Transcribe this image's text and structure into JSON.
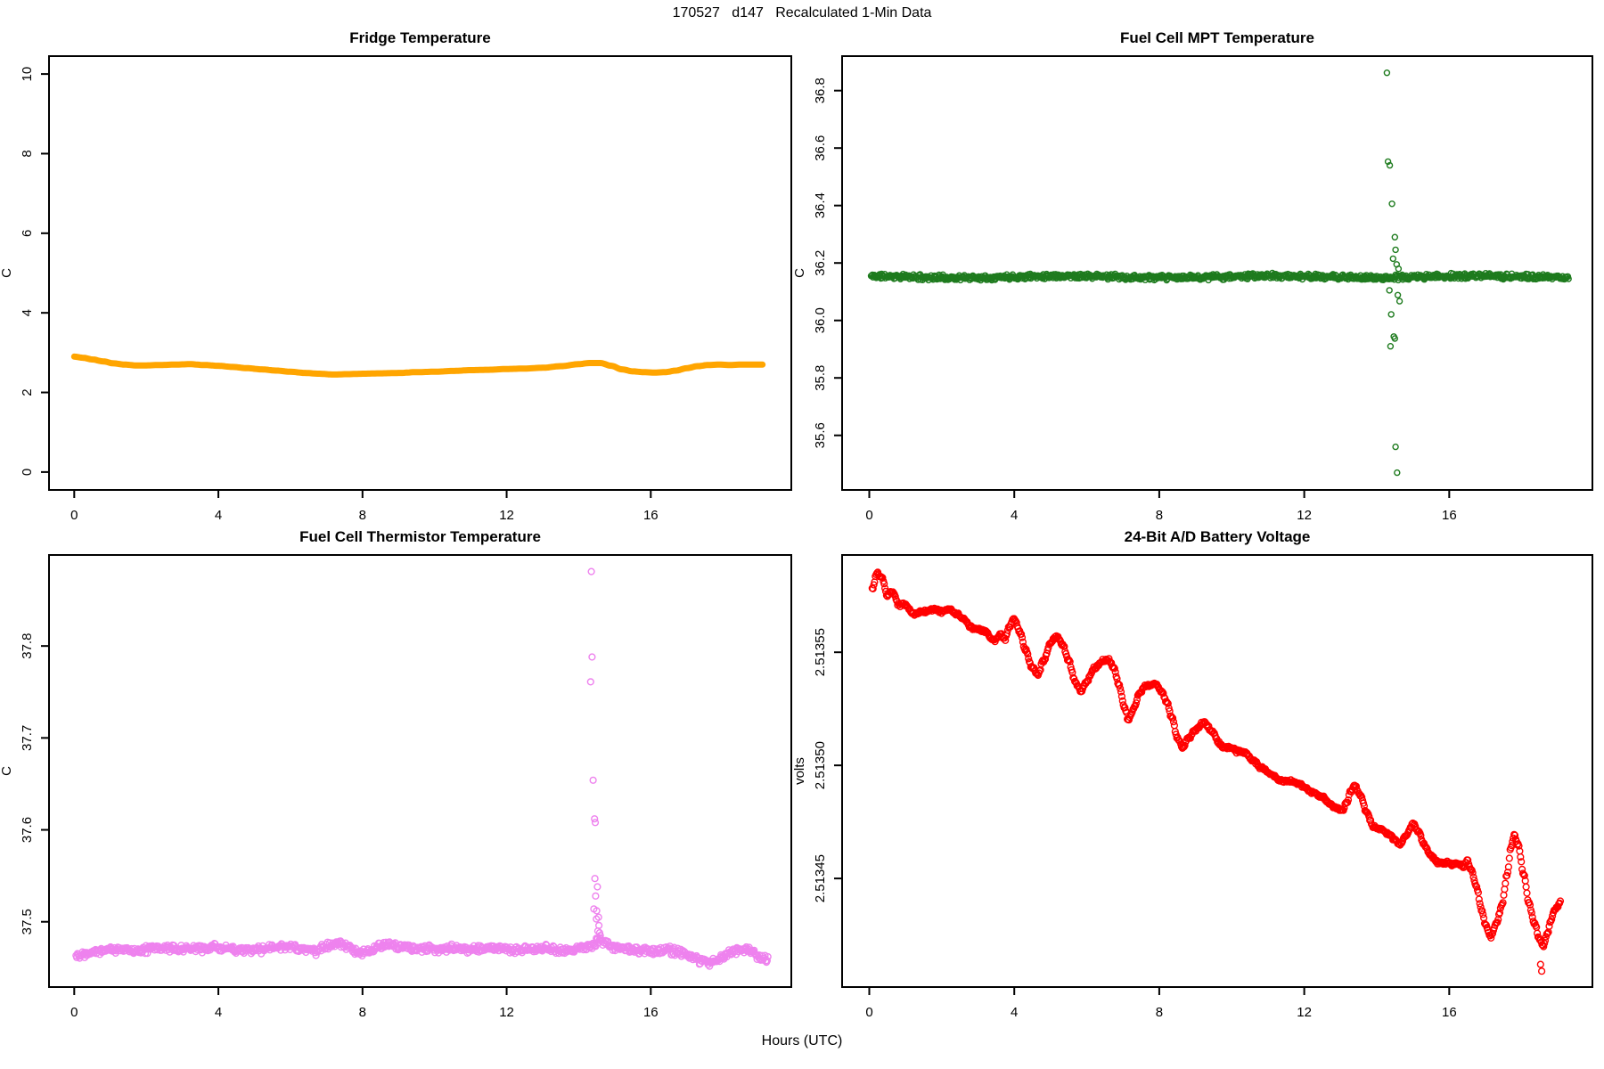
{
  "figure": {
    "main_title": "170527   d147   Recalculated 1-Min Data",
    "x_axis_label": "Hours (UTC)",
    "background_color": "#FFFFFF",
    "text_color": "#000000"
  },
  "chart_data": [
    {
      "id": "fridge-temperature",
      "type": "line",
      "title": "Fridge Temperature",
      "ylabel": "C",
      "color": "#FFA500",
      "x_ticks": [
        "0",
        "4",
        "8",
        "12",
        "16"
      ],
      "x_tick_values": [
        0,
        4,
        8,
        12,
        16
      ],
      "y_ticks": [
        "0",
        "2",
        "4",
        "6",
        "8",
        "10"
      ],
      "y_tick_values": [
        0,
        2,
        4,
        6,
        8,
        10
      ],
      "xlim": [
        -0.7,
        19.9
      ],
      "ylim": [
        -0.45,
        10.45
      ],
      "line_width": 7,
      "anchors": [
        [
          0.0,
          2.9
        ],
        [
          0.25,
          2.87
        ],
        [
          0.5,
          2.83
        ],
        [
          0.8,
          2.78
        ],
        [
          1.1,
          2.73
        ],
        [
          1.4,
          2.7
        ],
        [
          1.7,
          2.68
        ],
        [
          2.0,
          2.68
        ],
        [
          2.4,
          2.69
        ],
        [
          2.8,
          2.7
        ],
        [
          3.2,
          2.71
        ],
        [
          3.6,
          2.69
        ],
        [
          4.0,
          2.67
        ],
        [
          4.4,
          2.64
        ],
        [
          4.8,
          2.61
        ],
        [
          5.2,
          2.58
        ],
        [
          5.6,
          2.55
        ],
        [
          6.0,
          2.52
        ],
        [
          6.4,
          2.49
        ],
        [
          6.8,
          2.47
        ],
        [
          7.2,
          2.45
        ],
        [
          7.6,
          2.46
        ],
        [
          8.0,
          2.47
        ],
        [
          8.5,
          2.48
        ],
        [
          9.0,
          2.49
        ],
        [
          9.5,
          2.51
        ],
        [
          10.0,
          2.52
        ],
        [
          10.5,
          2.54
        ],
        [
          11.0,
          2.56
        ],
        [
          11.5,
          2.57
        ],
        [
          12.0,
          2.59
        ],
        [
          12.5,
          2.6
        ],
        [
          13.0,
          2.62
        ],
        [
          13.5,
          2.66
        ],
        [
          14.0,
          2.71
        ],
        [
          14.3,
          2.74
        ],
        [
          14.6,
          2.74
        ],
        [
          14.9,
          2.67
        ],
        [
          15.2,
          2.58
        ],
        [
          15.5,
          2.53
        ],
        [
          15.8,
          2.51
        ],
        [
          16.1,
          2.5
        ],
        [
          16.4,
          2.51
        ],
        [
          16.7,
          2.55
        ],
        [
          17.0,
          2.61
        ],
        [
          17.3,
          2.66
        ],
        [
          17.6,
          2.69
        ],
        [
          17.9,
          2.7
        ],
        [
          18.2,
          2.69
        ],
        [
          18.5,
          2.7
        ],
        [
          18.8,
          2.7
        ],
        [
          19.1,
          2.7
        ]
      ]
    },
    {
      "id": "fuel-cell-mpt-temperature",
      "type": "scatter",
      "title": "Fuel Cell MPT Temperature",
      "ylabel": "C",
      "color": "#1E7B1E",
      "x_ticks": [
        "0",
        "4",
        "8",
        "12",
        "16"
      ],
      "x_tick_values": [
        0,
        4,
        8,
        12,
        16
      ],
      "y_ticks": [
        "35.6",
        "35.8",
        "36.0",
        "36.2",
        "36.4",
        "36.6",
        "36.8"
      ],
      "y_tick_values": [
        35.6,
        35.8,
        36.0,
        36.2,
        36.4,
        36.6,
        36.8
      ],
      "xlim": [
        -0.75,
        19.95
      ],
      "ylim": [
        35.41,
        36.92
      ],
      "baseline": 36.152,
      "wobble": 0.003,
      "noise": 0.011,
      "t_range": [
        0.05,
        19.3
      ],
      "step": 0.018,
      "marker_r": 3.0,
      "seed": 11,
      "outliers": [
        [
          14.28,
          36.862
        ],
        [
          14.31,
          36.553
        ],
        [
          14.36,
          36.54
        ],
        [
          14.42,
          36.406
        ],
        [
          14.5,
          36.29
        ],
        [
          14.52,
          36.246
        ],
        [
          14.45,
          36.215
        ],
        [
          14.55,
          36.195
        ],
        [
          14.6,
          36.18
        ],
        [
          14.35,
          36.105
        ],
        [
          14.58,
          36.088
        ],
        [
          14.63,
          36.067
        ],
        [
          14.4,
          36.021
        ],
        [
          14.47,
          35.944
        ],
        [
          14.5,
          35.937
        ],
        [
          14.38,
          35.91
        ],
        [
          14.52,
          35.56
        ],
        [
          14.56,
          35.47
        ]
      ]
    },
    {
      "id": "fuel-cell-thermistor-temperature",
      "type": "scatter",
      "title": "Fuel Cell Thermistor Temperature",
      "ylabel": "C",
      "color": "#EE82EE",
      "x_ticks": [
        "0",
        "4",
        "8",
        "12",
        "16"
      ],
      "x_tick_values": [
        0,
        4,
        8,
        12,
        16
      ],
      "y_ticks": [
        "37.5",
        "37.6",
        "37.7",
        "37.8"
      ],
      "y_tick_values": [
        37.5,
        37.6,
        37.7,
        37.8
      ],
      "xlim": [
        -0.7,
        19.9
      ],
      "ylim": [
        37.429,
        37.899
      ],
      "noise": 0.005,
      "t_range": [
        0.05,
        19.25
      ],
      "step": 0.02,
      "marker_r": 3.4,
      "seed": 22,
      "anchors": [
        [
          0.1,
          37.464
        ],
        [
          0.5,
          37.468
        ],
        [
          1.0,
          37.47
        ],
        [
          1.5,
          37.469
        ],
        [
          2.0,
          37.47
        ],
        [
          2.5,
          37.472
        ],
        [
          3.0,
          37.47
        ],
        [
          3.5,
          37.471
        ],
        [
          4.0,
          37.472
        ],
        [
          4.5,
          37.47
        ],
        [
          5.0,
          37.469
        ],
        [
          5.5,
          37.472
        ],
        [
          6.0,
          37.473
        ],
        [
          6.3,
          37.47
        ],
        [
          6.7,
          37.468
        ],
        [
          7.0,
          37.474
        ],
        [
          7.3,
          37.478
        ],
        [
          7.6,
          37.472
        ],
        [
          7.9,
          37.465
        ],
        [
          8.2,
          37.467
        ],
        [
          8.5,
          37.474
        ],
        [
          8.8,
          37.476
        ],
        [
          9.1,
          37.472
        ],
        [
          9.5,
          37.47
        ],
        [
          10.0,
          37.471
        ],
        [
          10.5,
          37.472
        ],
        [
          11.0,
          37.47
        ],
        [
          11.5,
          37.471
        ],
        [
          12.0,
          37.47
        ],
        [
          12.5,
          37.47
        ],
        [
          13.0,
          37.471
        ],
        [
          13.5,
          37.469
        ],
        [
          13.9,
          37.47
        ],
        [
          14.2,
          37.472
        ],
        [
          14.6,
          37.48
        ],
        [
          14.8,
          37.476
        ],
        [
          15.0,
          37.472
        ],
        [
          15.3,
          37.47
        ],
        [
          15.6,
          37.469
        ],
        [
          16.0,
          37.468
        ],
        [
          16.4,
          37.469
        ],
        [
          16.8,
          37.467
        ],
        [
          17.1,
          37.463
        ],
        [
          17.4,
          37.457
        ],
        [
          17.6,
          37.455
        ],
        [
          17.9,
          37.459
        ],
        [
          18.2,
          37.466
        ],
        [
          18.5,
          37.47
        ],
        [
          18.8,
          37.468
        ],
        [
          19.0,
          37.462
        ],
        [
          19.2,
          37.46
        ]
      ],
      "outliers": [
        [
          14.35,
          37.881
        ],
        [
          14.37,
          37.788
        ],
        [
          14.33,
          37.761
        ],
        [
          14.4,
          37.654
        ],
        [
          14.44,
          37.612
        ],
        [
          14.46,
          37.608
        ],
        [
          14.45,
          37.547
        ],
        [
          14.52,
          37.538
        ],
        [
          14.47,
          37.528
        ],
        [
          14.42,
          37.514
        ],
        [
          14.5,
          37.512
        ],
        [
          14.49,
          37.503
        ],
        [
          14.55,
          37.505
        ],
        [
          14.56,
          37.496
        ],
        [
          14.53,
          37.49
        ],
        [
          14.58,
          37.488
        ],
        [
          14.6,
          37.485
        ]
      ]
    },
    {
      "id": "battery-voltage",
      "type": "scatter",
      "title": "24-Bit A/D Battery Voltage",
      "ylabel": "volts",
      "color": "#FF0000",
      "x_ticks": [
        "0",
        "4",
        "8",
        "12",
        "16"
      ],
      "x_tick_values": [
        0,
        4,
        8,
        12,
        16
      ],
      "y_ticks": [
        "2.51345",
        "2.51350",
        "2.51355"
      ],
      "y_tick_values": [
        2.51345,
        2.5135,
        2.51355
      ],
      "xlim": [
        -0.75,
        19.95
      ],
      "ylim": [
        2.513402,
        2.513593
      ],
      "noise": 9e-07,
      "t_range": [
        0.08,
        19.08
      ],
      "step": 0.022,
      "marker_r": 3.4,
      "seed": 33,
      "anchors": [
        [
          0.08,
          2.513578
        ],
        [
          0.22,
          2.513585
        ],
        [
          0.34,
          2.513583
        ],
        [
          0.5,
          2.513575
        ],
        [
          0.64,
          2.513577
        ],
        [
          0.8,
          2.513571
        ],
        [
          1.0,
          2.513571
        ],
        [
          1.2,
          2.513567
        ],
        [
          1.5,
          2.513568
        ],
        [
          1.8,
          2.513569
        ],
        [
          2.0,
          2.513568
        ],
        [
          2.2,
          2.513569
        ],
        [
          2.4,
          2.513567
        ],
        [
          2.6,
          2.513565
        ],
        [
          2.8,
          2.513561
        ],
        [
          3.0,
          2.51356
        ],
        [
          3.2,
          2.513559
        ],
        [
          3.45,
          2.513555
        ],
        [
          3.6,
          2.513558
        ],
        [
          3.75,
          2.513556
        ],
        [
          3.85,
          2.513561
        ],
        [
          4.0,
          2.513565
        ],
        [
          4.15,
          2.513559
        ],
        [
          4.3,
          2.513551
        ],
        [
          4.5,
          2.513543
        ],
        [
          4.65,
          2.51354
        ],
        [
          4.8,
          2.513546
        ],
        [
          5.0,
          2.513554
        ],
        [
          5.17,
          2.513557
        ],
        [
          5.35,
          2.513553
        ],
        [
          5.5,
          2.513546
        ],
        [
          5.7,
          2.513536
        ],
        [
          5.85,
          2.513533
        ],
        [
          6.0,
          2.513537
        ],
        [
          6.2,
          2.513543
        ],
        [
          6.45,
          2.513546
        ],
        [
          6.6,
          2.513547
        ],
        [
          6.75,
          2.513543
        ],
        [
          6.9,
          2.513535
        ],
        [
          7.05,
          2.513525
        ],
        [
          7.15,
          2.51352
        ],
        [
          7.3,
          2.513525
        ],
        [
          7.45,
          2.513532
        ],
        [
          7.6,
          2.513535
        ],
        [
          7.9,
          2.513536
        ],
        [
          8.05,
          2.513533
        ],
        [
          8.2,
          2.513528
        ],
        [
          8.35,
          2.513521
        ],
        [
          8.5,
          2.513512
        ],
        [
          8.65,
          2.513508
        ],
        [
          8.8,
          2.513512
        ],
        [
          9.0,
          2.513516
        ],
        [
          9.25,
          2.513519
        ],
        [
          9.45,
          2.513515
        ],
        [
          9.65,
          2.51351
        ],
        [
          9.75,
          2.513508
        ],
        [
          10.0,
          2.513508
        ],
        [
          10.15,
          2.513506
        ],
        [
          10.35,
          2.513506
        ],
        [
          10.6,
          2.513502
        ],
        [
          10.8,
          2.513499
        ],
        [
          11.1,
          2.513496
        ],
        [
          11.35,
          2.513493
        ],
        [
          11.6,
          2.513493
        ],
        [
          11.85,
          2.513492
        ],
        [
          12.0,
          2.51349
        ],
        [
          12.25,
          2.513488
        ],
        [
          12.5,
          2.513486
        ],
        [
          12.7,
          2.513483
        ],
        [
          12.9,
          2.513481
        ],
        [
          13.05,
          2.51348
        ],
        [
          13.15,
          2.513483
        ],
        [
          13.3,
          2.513489
        ],
        [
          13.4,
          2.513491
        ],
        [
          13.55,
          2.513487
        ],
        [
          13.7,
          2.51348
        ],
        [
          13.9,
          2.513473
        ],
        [
          14.1,
          2.513472
        ],
        [
          14.3,
          2.51347
        ],
        [
          14.5,
          2.513467
        ],
        [
          14.65,
          2.513465
        ],
        [
          14.8,
          2.513469
        ],
        [
          15.0,
          2.513474
        ],
        [
          15.15,
          2.513471
        ],
        [
          15.3,
          2.513465
        ],
        [
          15.5,
          2.51346
        ],
        [
          15.7,
          2.513457
        ],
        [
          15.9,
          2.513457
        ],
        [
          16.1,
          2.513456
        ],
        [
          16.25,
          2.513457
        ],
        [
          16.4,
          2.513455
        ],
        [
          16.5,
          2.513458
        ],
        [
          16.6,
          2.513454
        ],
        [
          16.75,
          2.513446
        ],
        [
          16.9,
          2.513436
        ],
        [
          17.0,
          2.51343
        ],
        [
          17.15,
          2.513424
        ],
        [
          17.3,
          2.51343
        ],
        [
          17.45,
          2.513438
        ],
        [
          17.6,
          2.513452
        ],
        [
          17.7,
          2.513464
        ],
        [
          17.8,
          2.513469
        ],
        [
          17.9,
          2.513465
        ],
        [
          18.05,
          2.513452
        ],
        [
          18.2,
          2.513439
        ],
        [
          18.35,
          2.51343
        ],
        [
          18.5,
          2.513423
        ],
        [
          18.6,
          2.51342
        ],
        [
          18.7,
          2.513425
        ],
        [
          18.8,
          2.513431
        ],
        [
          18.9,
          2.513436
        ],
        [
          19.0,
          2.513438
        ],
        [
          19.08,
          2.51344
        ]
      ],
      "outliers": [
        [
          18.52,
          2.513412
        ],
        [
          18.55,
          2.513409
        ]
      ]
    }
  ]
}
